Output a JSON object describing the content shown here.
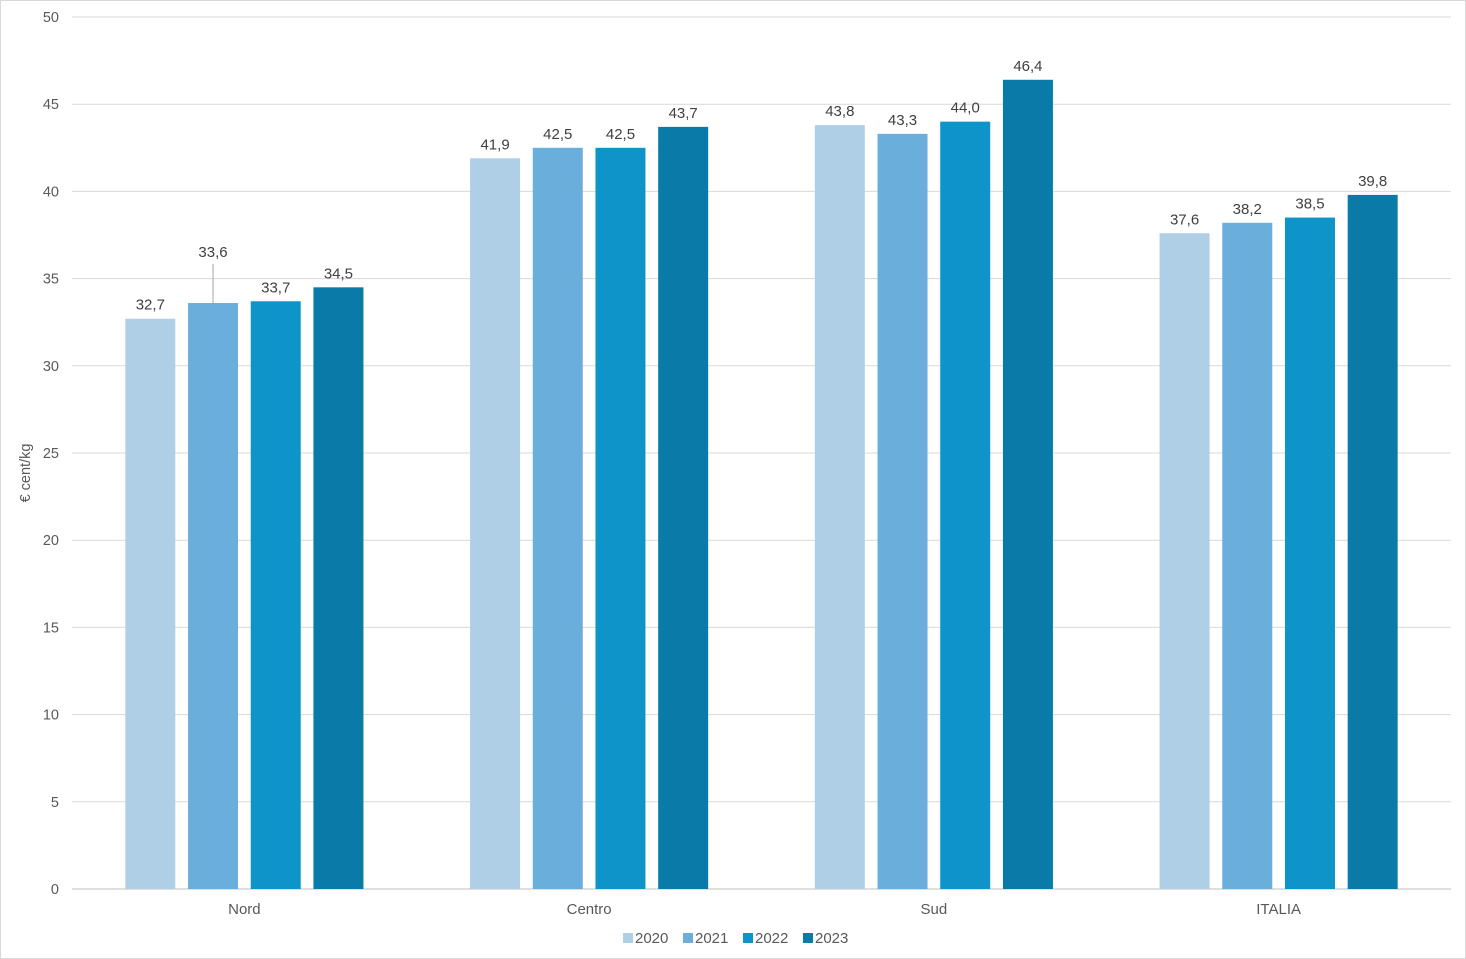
{
  "chart_data": {
    "type": "bar",
    "ylabel": "€ cent/kg",
    "xlabel": "",
    "ylim": [
      0,
      50
    ],
    "y_ticks": [
      0,
      5,
      10,
      15,
      20,
      25,
      30,
      35,
      40,
      45,
      50
    ],
    "categories": [
      "Nord",
      "Centro",
      "Sud",
      "ITALIA"
    ],
    "series": [
      {
        "name": "2020",
        "color": "#afcfe7",
        "values": [
          32.7,
          41.9,
          43.8,
          37.6
        ],
        "labels": [
          "32,7",
          "41,9",
          "43,8",
          "37,6"
        ]
      },
      {
        "name": "2021",
        "color": "#6aafdc",
        "values": [
          33.6,
          42.5,
          43.3,
          38.2
        ],
        "labels": [
          "33,6",
          "42,5",
          "43,3",
          "38,2"
        ]
      },
      {
        "name": "2022",
        "color": "#0e94c9",
        "values": [
          33.7,
          42.5,
          44.0,
          38.5
        ],
        "labels": [
          "33,7",
          "42,5",
          "44,0",
          "38,5"
        ]
      },
      {
        "name": "2023",
        "color": "#0a7aa8",
        "values": [
          34.5,
          43.7,
          46.4,
          39.8
        ],
        "labels": [
          "34,5",
          "43,7",
          "46,4",
          "39,8"
        ]
      }
    ],
    "grid": true,
    "legend_position": "bottom"
  }
}
